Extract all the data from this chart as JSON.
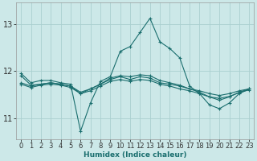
{
  "xlabel": "Humidex (Indice chaleur)",
  "background_color": "#cce8e8",
  "grid_color": "#aad0d0",
  "line_color": "#1a6e6e",
  "x_ticks": [
    0,
    1,
    2,
    3,
    4,
    5,
    6,
    7,
    8,
    9,
    10,
    11,
    12,
    13,
    14,
    15,
    16,
    17,
    18,
    19,
    20,
    21,
    22,
    23
  ],
  "y_ticks": [
    11,
    12,
    13
  ],
  "xlim": [
    -0.5,
    23.5
  ],
  "ylim": [
    10.55,
    13.45
  ],
  "curves": [
    [
      11.95,
      11.75,
      11.8,
      11.8,
      11.75,
      11.72,
      10.72,
      11.32,
      11.78,
      11.88,
      12.42,
      12.52,
      12.82,
      13.12,
      12.62,
      12.48,
      12.28,
      11.68,
      11.52,
      11.28,
      11.2,
      11.32,
      11.52,
      11.62
    ],
    [
      11.75,
      11.68,
      11.72,
      11.75,
      11.72,
      11.68,
      11.55,
      11.62,
      11.72,
      11.82,
      11.88,
      11.82,
      11.88,
      11.85,
      11.75,
      11.72,
      11.68,
      11.62,
      11.58,
      11.52,
      11.48,
      11.52,
      11.58,
      11.62
    ],
    [
      11.72,
      11.65,
      11.7,
      11.72,
      11.7,
      11.65,
      11.52,
      11.58,
      11.68,
      11.78,
      11.82,
      11.78,
      11.82,
      11.8,
      11.72,
      11.68,
      11.62,
      11.58,
      11.52,
      11.45,
      11.42,
      11.46,
      11.54,
      11.6
    ],
    [
      11.9,
      11.7,
      11.72,
      11.75,
      11.72,
      11.68,
      11.52,
      11.62,
      11.72,
      11.85,
      11.9,
      11.88,
      11.92,
      11.9,
      11.8,
      11.75,
      11.7,
      11.62,
      11.55,
      11.45,
      11.38,
      11.45,
      11.55,
      11.62
    ]
  ]
}
